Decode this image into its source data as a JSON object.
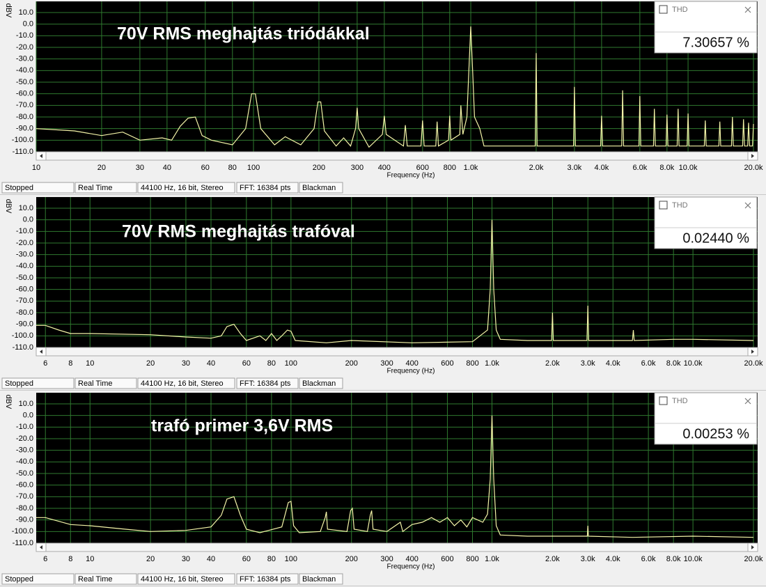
{
  "chart_data": [
    {
      "type": "line",
      "title": "70V RMS meghajtás triódákkal",
      "y_label": "dBV",
      "x_label": "Frequency (Hz)",
      "log_x": true,
      "grid": true,
      "color": "#f4f4a8",
      "xlim": [
        10,
        20000
      ],
      "ylim": [
        -110,
        19.6
      ],
      "xticks": [
        10,
        20,
        30,
        40,
        60,
        80,
        100,
        200,
        300,
        400,
        600,
        800,
        {
          "value": 1000,
          "label": "1.0k"
        },
        {
          "value": 2000,
          "label": "2.0k"
        },
        {
          "value": 3000,
          "label": "3.0k"
        },
        {
          "value": 4000,
          "label": "4.0k"
        },
        {
          "value": 6000,
          "label": "6.0k"
        },
        {
          "value": 8000,
          "label": "8.0k"
        },
        {
          "value": 10000,
          "label": "10.0k"
        },
        {
          "value": 20000,
          "label": "20.0k"
        }
      ],
      "yticks": [
        {
          "value": 10,
          "label": "10.0"
        },
        {
          "value": 0,
          "label": "0.0"
        },
        {
          "value": -10,
          "label": "-10.0"
        },
        {
          "value": -20,
          "label": "-20.0"
        },
        {
          "value": -30,
          "label": "-30.0"
        },
        {
          "value": -40,
          "label": "-40.0"
        },
        {
          "value": -50,
          "label": "-50.0"
        },
        {
          "value": -60,
          "label": "-60.0"
        },
        {
          "value": -70,
          "label": "-70.0"
        },
        {
          "value": -80,
          "label": "-80.0"
        },
        {
          "value": -90,
          "label": "-90.0"
        },
        {
          "value": -100,
          "label": "-100.0"
        },
        {
          "value": -110,
          "label": "-110.0"
        }
      ],
      "x": [
        10,
        15,
        20,
        25,
        30,
        38,
        42,
        46,
        50,
        54,
        58,
        64,
        80,
        92,
        98,
        102,
        108,
        125,
        140,
        165,
        190,
        198,
        204,
        212,
        240,
        260,
        280,
        295,
        300,
        305,
        340,
        392,
        400,
        408,
        490,
        500,
        510,
        590,
        600,
        610,
        690,
        700,
        710,
        790,
        800,
        810,
        890,
        900,
        920,
        960,
        980,
        1000,
        1020,
        1040,
        1100,
        1150,
        1980,
        2000,
        2020,
        2970,
        3000,
        3030,
        3960,
        4000,
        4040,
        4950,
        5000,
        5050,
        5940,
        6000,
        6060,
        6930,
        7000,
        7070,
        7920,
        8000,
        8080,
        8910,
        9000,
        9090,
        9900,
        10000,
        10100,
        11880,
        12000,
        12120,
        13860,
        14000,
        14140,
        15840,
        16000,
        16160,
        17820,
        18000,
        18180,
        18810,
        19000,
        19190,
        19800,
        20000
      ],
      "values": [
        -90,
        -92,
        -96,
        -93,
        -100,
        -98,
        -100,
        -88,
        -81,
        -80,
        -96,
        -100,
        -104,
        -90,
        -60,
        -60,
        -90,
        -104,
        -97,
        -104,
        -90,
        -67,
        -67,
        -92,
        -105,
        -98,
        -105,
        -90,
        -72,
        -90,
        -106,
        -95,
        -79,
        -95,
        -105,
        -87,
        -105,
        -105,
        -83,
        -105,
        -105,
        -84,
        -105,
        -100,
        -79,
        -100,
        -95,
        -70,
        -95,
        -80,
        -40,
        -2,
        -40,
        -80,
        -90,
        -105,
        -105,
        -25,
        -105,
        -105,
        -54,
        -105,
        -105,
        -79,
        -105,
        -105,
        -57,
        -105,
        -105,
        -62,
        -105,
        -105,
        -73,
        -105,
        -105,
        -78,
        -105,
        -105,
        -73,
        -105,
        -105,
        -77,
        -105,
        -105,
        -83,
        -105,
        -105,
        -84,
        -105,
        -105,
        -80,
        -105,
        -105,
        -82,
        -105,
        -105,
        -85,
        -105,
        -105,
        -86
      ]
    },
    {
      "type": "line",
      "title": "70V RMS meghajtás trafóval",
      "y_label": "dBV",
      "x_label": "Frequency (Hz)",
      "log_x": true,
      "grid": true,
      "color": "#f4f4a8",
      "xlim": [
        5.4,
        20000
      ],
      "ylim": [
        -110,
        19.6
      ],
      "xticks": [
        6,
        8,
        10,
        20,
        30,
        40,
        60,
        80,
        100,
        200,
        300,
        400,
        600,
        800,
        {
          "value": 1000,
          "label": "1.0k"
        },
        {
          "value": 2000,
          "label": "2.0k"
        },
        {
          "value": 3000,
          "label": "3.0k"
        },
        {
          "value": 4000,
          "label": "4.0k"
        },
        {
          "value": 6000,
          "label": "6.0k"
        },
        {
          "value": 8000,
          "label": "8.0k"
        },
        {
          "value": 10000,
          "label": "10.0k"
        },
        {
          "value": 20000,
          "label": "20.0k"
        }
      ],
      "yticks": [
        {
          "value": 10,
          "label": "10.0"
        },
        {
          "value": 0,
          "label": "0.0"
        },
        {
          "value": -10,
          "label": "-10.0"
        },
        {
          "value": -20,
          "label": "-20.0"
        },
        {
          "value": -30,
          "label": "-30.0"
        },
        {
          "value": -40,
          "label": "-40.0"
        },
        {
          "value": -50,
          "label": "-50.0"
        },
        {
          "value": -60,
          "label": "-60.0"
        },
        {
          "value": -70,
          "label": "-70.0"
        },
        {
          "value": -80,
          "label": "-80.0"
        },
        {
          "value": -90,
          "label": "-90.0"
        },
        {
          "value": -100,
          "label": "-100.0"
        },
        {
          "value": -110,
          "label": "-110.0"
        }
      ],
      "x": [
        5.4,
        6,
        7,
        8,
        10,
        20,
        30,
        40,
        45,
        48,
        52,
        56,
        60,
        70,
        75,
        80,
        85,
        90,
        96,
        100,
        105,
        150,
        200,
        400,
        800,
        950,
        980,
        1000,
        1020,
        1050,
        1100,
        1500,
        1980,
        2000,
        2020,
        2970,
        3000,
        3030,
        4000,
        5000,
        5050,
        5100,
        8000,
        10000,
        20000
      ],
      "values": [
        -91,
        -91,
        -95,
        -98,
        -98,
        -99,
        -101,
        -102,
        -100,
        -92,
        -90,
        -98,
        -104,
        -100,
        -104,
        -98,
        -104,
        -100,
        -95,
        -96,
        -104,
        -106,
        -104,
        -106,
        -105,
        -95,
        -60,
        0,
        -60,
        -95,
        -103,
        -104,
        -104,
        -80,
        -104,
        -104,
        -74,
        -104,
        -104,
        -104,
        -95,
        -104,
        -103,
        -103,
        -104
      ]
    },
    {
      "type": "line",
      "title": "trafó primer 3,6V RMS",
      "y_label": "dBV",
      "x_label": "Frequency (Hz)",
      "log_x": true,
      "grid": true,
      "color": "#f4f4a8",
      "xlim": [
        5.4,
        20000
      ],
      "ylim": [
        -110,
        19.6
      ],
      "xticks": [
        6,
        8,
        10,
        20,
        30,
        40,
        60,
        80,
        100,
        200,
        300,
        400,
        600,
        800,
        {
          "value": 1000,
          "label": "1.0k"
        },
        {
          "value": 2000,
          "label": "2.0k"
        },
        {
          "value": 3000,
          "label": "3.0k"
        },
        {
          "value": 4000,
          "label": "4.0k"
        },
        {
          "value": 6000,
          "label": "6.0k"
        },
        {
          "value": 8000,
          "label": "8.0k"
        },
        {
          "value": 10000,
          "label": "10.0k"
        },
        {
          "value": 20000,
          "label": "20.0k"
        }
      ],
      "yticks": [
        {
          "value": 10,
          "label": "10.0"
        },
        {
          "value": 0,
          "label": "0.0"
        },
        {
          "value": -10,
          "label": "-10.0"
        },
        {
          "value": -20,
          "label": "-20.0"
        },
        {
          "value": -30,
          "label": "-30.0"
        },
        {
          "value": -40,
          "label": "-40.0"
        },
        {
          "value": -50,
          "label": "-50.0"
        },
        {
          "value": -60,
          "label": "-60.0"
        },
        {
          "value": -70,
          "label": "-70.0"
        },
        {
          "value": -80,
          "label": "-80.0"
        },
        {
          "value": -90,
          "label": "-90.0"
        },
        {
          "value": -100,
          "label": "-100.0"
        },
        {
          "value": -110,
          "label": "-110.0"
        }
      ],
      "x": [
        5.4,
        6,
        8,
        10,
        15,
        20,
        30,
        40,
        45,
        48,
        52,
        56,
        60,
        70,
        90,
        97,
        100,
        103,
        110,
        140,
        148,
        150,
        152,
        190,
        198,
        202,
        206,
        240,
        248,
        252,
        256,
        300,
        350,
        360,
        400,
        450,
        500,
        550,
        600,
        650,
        700,
        750,
        800,
        900,
        950,
        980,
        1000,
        1020,
        1050,
        1100,
        1500,
        2000,
        2980,
        3000,
        3020,
        5000,
        10000,
        20000
      ],
      "values": [
        -88,
        -88,
        -94,
        -95,
        -98,
        -100,
        -99,
        -96,
        -86,
        -72,
        -70,
        -86,
        -98,
        -101,
        -96,
        -75,
        -74,
        -95,
        -101,
        -100,
        -88,
        -83,
        -98,
        -100,
        -82,
        -80,
        -98,
        -100,
        -86,
        -82,
        -98,
        -100,
        -92,
        -100,
        -94,
        -92,
        -88,
        -92,
        -88,
        -95,
        -90,
        -96,
        -88,
        -92,
        -85,
        -55,
        0,
        -55,
        -95,
        -103,
        -104,
        -104,
        -104,
        -95,
        -104,
        -105,
        -104,
        -105
      ]
    }
  ],
  "panels": [
    {
      "thd_label": "THD",
      "thd_value": "7.30657 %",
      "status": [
        "Stopped",
        "Real Time",
        "44100 Hz, 16 bit, Stereo",
        "FFT: 16384 pts",
        "Blackman"
      ]
    },
    {
      "thd_label": "THD",
      "thd_value": "0.02440 %",
      "status": [
        "Stopped",
        "Real Time",
        "44100 Hz, 16 bit, Stereo",
        "FFT: 16384 pts",
        "Blackman"
      ]
    },
    {
      "thd_label": "THD",
      "thd_value": "0.00253 %",
      "status": [
        "Stopped",
        "Real Time",
        "44100 Hz, 16 bit, Stereo",
        "FFT: 16384 pts",
        "Blackman"
      ]
    }
  ]
}
